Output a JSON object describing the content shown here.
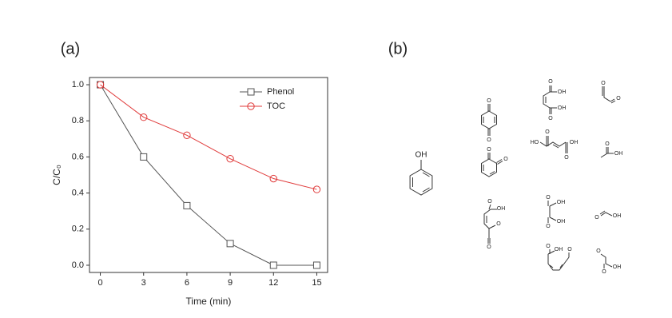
{
  "panels": [
    "(a)",
    "(b)"
  ],
  "chart_data": {
    "type": "line",
    "x": [
      0,
      3,
      6,
      9,
      12,
      15
    ],
    "xlabel": "Time (min)",
    "ylabel": "C/C₀",
    "xlim": [
      -0.75,
      15.75
    ],
    "ylim": [
      -0.04,
      1.04
    ],
    "xticks": [
      0,
      3,
      6,
      9,
      12,
      15
    ],
    "yticks": [
      {
        "value": 0,
        "label": "0.0"
      },
      0.2,
      0.4,
      0.6,
      0.8,
      {
        "value": 1,
        "label": "1.0"
      }
    ],
    "legend": "upper right",
    "series": [
      {
        "name": "Phenol",
        "color": "#555555",
        "marker": "square",
        "values": [
          1,
          0.6,
          0.33,
          0.12,
          0,
          0
        ]
      },
      {
        "name": "TOC",
        "color": "#e03a3a",
        "marker": "circle",
        "values": [
          1,
          0.82,
          0.72,
          0.59,
          0.48,
          0.42
        ]
      }
    ]
  },
  "structures": [
    {
      "labels": [
        "OH"
      ]
    },
    {
      "labels": [
        "O",
        "O"
      ]
    },
    {
      "labels": [
        "O",
        "O"
      ]
    },
    {
      "labels": [
        "O",
        "OH",
        "O",
        "OH"
      ]
    },
    {
      "labels": [
        "HO",
        "O",
        "O",
        "OH"
      ]
    },
    {
      "labels": [
        "O",
        "O"
      ]
    },
    {
      "labels": [
        "O",
        "OH"
      ]
    },
    {
      "labels": [
        "O",
        "OH",
        "O",
        "O"
      ]
    },
    {
      "labels": [
        "O",
        "OH",
        "O",
        "OH"
      ]
    },
    {
      "labels": [
        "O",
        "OH"
      ]
    },
    {
      "labels": [
        "O",
        "OH",
        "O"
      ]
    },
    {
      "labels": [
        "O",
        "O",
        "OH"
      ]
    }
  ]
}
